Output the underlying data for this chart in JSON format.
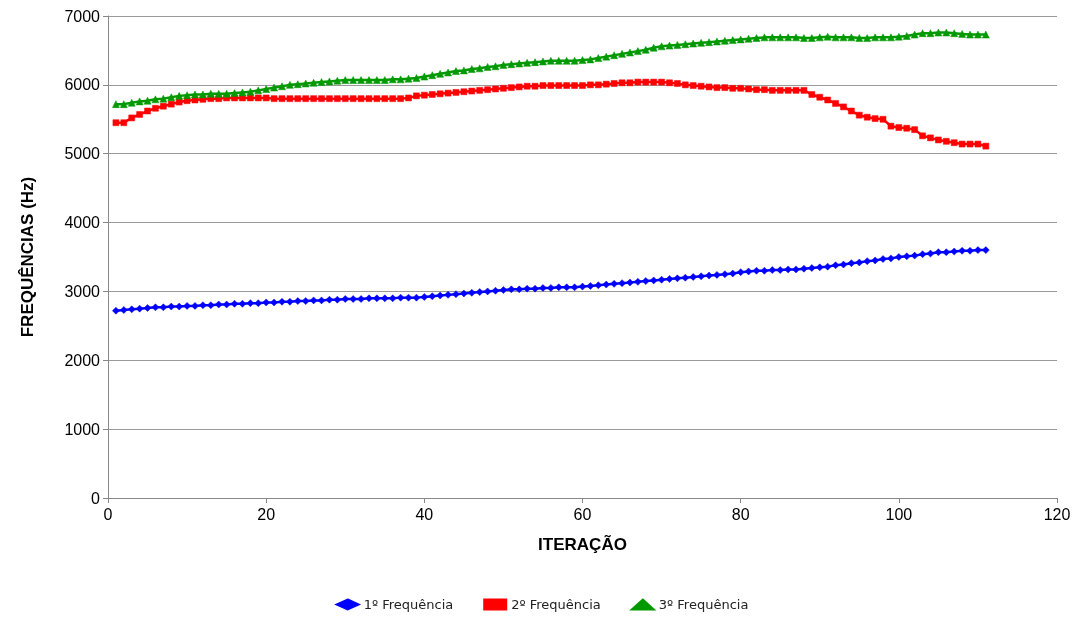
{
  "chart_data": {
    "type": "line",
    "xlabel": "ITERAÇÃO",
    "ylabel": "FREQUÊNCIAS (Hz)",
    "x": [
      1,
      2,
      3,
      4,
      5,
      6,
      7,
      8,
      9,
      10,
      11,
      12,
      13,
      14,
      15,
      16,
      17,
      18,
      19,
      20,
      21,
      22,
      23,
      24,
      25,
      26,
      27,
      28,
      29,
      30,
      31,
      32,
      33,
      34,
      35,
      36,
      37,
      38,
      39,
      40,
      41,
      42,
      43,
      44,
      45,
      46,
      47,
      48,
      49,
      50,
      51,
      52,
      53,
      54,
      55,
      56,
      57,
      58,
      59,
      60,
      61,
      62,
      63,
      64,
      65,
      66,
      67,
      68,
      69,
      70,
      71,
      72,
      73,
      74,
      75,
      76,
      77,
      78,
      79,
      80,
      81,
      82,
      83,
      84,
      85,
      86,
      87,
      88,
      89,
      90,
      91,
      92,
      93,
      94,
      95,
      96,
      97,
      98,
      99,
      100,
      101,
      102,
      103,
      104,
      105,
      106,
      107,
      108,
      109,
      110,
      111
    ],
    "series": [
      {
        "name": "1º Frequência",
        "color": "#0000ff",
        "marker": "diamond",
        "values": [
          2720,
          2730,
          2740,
          2750,
          2760,
          2770,
          2770,
          2780,
          2780,
          2790,
          2790,
          2800,
          2800,
          2810,
          2810,
          2820,
          2820,
          2830,
          2830,
          2840,
          2840,
          2850,
          2850,
          2860,
          2860,
          2870,
          2870,
          2880,
          2880,
          2890,
          2890,
          2890,
          2900,
          2900,
          2900,
          2900,
          2910,
          2910,
          2910,
          2920,
          2930,
          2940,
          2950,
          2960,
          2970,
          2980,
          2990,
          3000,
          3010,
          3020,
          3030,
          3030,
          3040,
          3040,
          3050,
          3050,
          3060,
          3060,
          3060,
          3070,
          3080,
          3090,
          3100,
          3110,
          3120,
          3130,
          3140,
          3150,
          3160,
          3170,
          3180,
          3190,
          3200,
          3210,
          3220,
          3230,
          3240,
          3250,
          3260,
          3280,
          3290,
          3300,
          3300,
          3310,
          3310,
          3320,
          3320,
          3330,
          3340,
          3350,
          3360,
          3380,
          3390,
          3410,
          3420,
          3440,
          3450,
          3470,
          3480,
          3500,
          3510,
          3520,
          3540,
          3550,
          3570,
          3570,
          3580,
          3590,
          3590,
          3600,
          3600
        ]
      },
      {
        "name": "2º Frequência",
        "color": "#ff0000",
        "marker": "square",
        "values": [
          5450,
          5450,
          5520,
          5570,
          5620,
          5660,
          5690,
          5720,
          5750,
          5770,
          5780,
          5790,
          5800,
          5800,
          5810,
          5810,
          5810,
          5810,
          5810,
          5810,
          5800,
          5800,
          5800,
          5800,
          5800,
          5800,
          5800,
          5800,
          5800,
          5800,
          5800,
          5800,
          5800,
          5800,
          5800,
          5800,
          5800,
          5810,
          5840,
          5850,
          5860,
          5870,
          5880,
          5890,
          5900,
          5910,
          5920,
          5930,
          5940,
          5950,
          5960,
          5970,
          5980,
          5980,
          5990,
          5990,
          5990,
          5990,
          5990,
          5990,
          6000,
          6000,
          6010,
          6020,
          6030,
          6030,
          6040,
          6040,
          6040,
          6040,
          6030,
          6020,
          6000,
          5990,
          5980,
          5970,
          5960,
          5960,
          5950,
          5950,
          5940,
          5930,
          5930,
          5920,
          5920,
          5920,
          5920,
          5920,
          5860,
          5820,
          5780,
          5730,
          5680,
          5620,
          5560,
          5530,
          5510,
          5500,
          5400,
          5380,
          5370,
          5350,
          5260,
          5230,
          5200,
          5180,
          5160,
          5140,
          5140,
          5140,
          5110
        ]
      },
      {
        "name": "3º Frequência",
        "color": "#009900",
        "marker": "triangle",
        "values": [
          5720,
          5720,
          5740,
          5760,
          5770,
          5790,
          5800,
          5820,
          5840,
          5850,
          5860,
          5860,
          5870,
          5870,
          5870,
          5880,
          5890,
          5900,
          5920,
          5940,
          5960,
          5980,
          6000,
          6010,
          6020,
          6030,
          6040,
          6050,
          6060,
          6070,
          6070,
          6070,
          6070,
          6070,
          6070,
          6080,
          6080,
          6090,
          6100,
          6120,
          6140,
          6160,
          6180,
          6200,
          6210,
          6230,
          6240,
          6260,
          6270,
          6290,
          6300,
          6310,
          6320,
          6330,
          6340,
          6350,
          6350,
          6350,
          6350,
          6360,
          6370,
          6390,
          6410,
          6430,
          6450,
          6470,
          6490,
          6510,
          6540,
          6560,
          6570,
          6580,
          6590,
          6600,
          6610,
          6620,
          6630,
          6640,
          6650,
          6660,
          6670,
          6680,
          6690,
          6690,
          6690,
          6690,
          6690,
          6680,
          6680,
          6690,
          6700,
          6690,
          6690,
          6690,
          6680,
          6680,
          6690,
          6690,
          6690,
          6700,
          6710,
          6730,
          6750,
          6750,
          6760,
          6760,
          6750,
          6740,
          6730,
          6730,
          6730
        ]
      }
    ],
    "xlim": [
      0,
      120
    ],
    "xticks": [
      0,
      20,
      40,
      60,
      80,
      100,
      120
    ],
    "ylim": [
      0,
      7000
    ],
    "yticks": [
      0,
      1000,
      2000,
      3000,
      4000,
      5000,
      6000,
      7000
    ],
    "grid": "y",
    "legend": "bottom"
  }
}
